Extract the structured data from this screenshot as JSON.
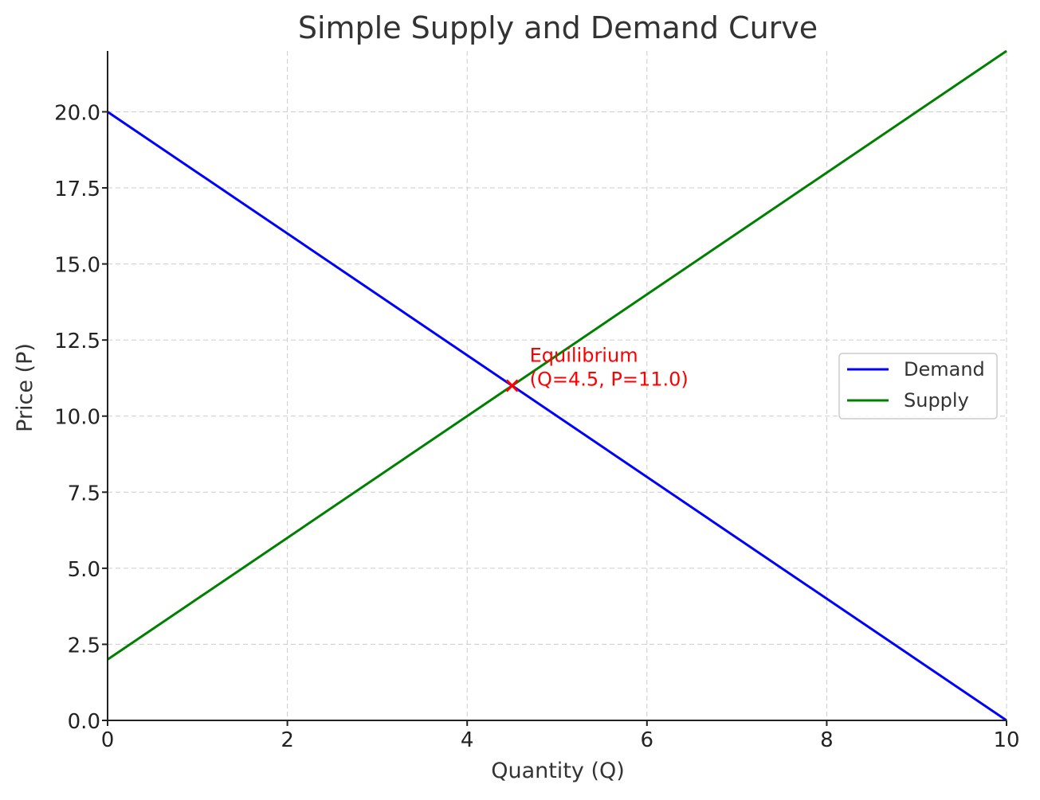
{
  "chart_data": {
    "type": "line",
    "title": "Simple Supply and Demand Curve",
    "xlabel": "Quantity (Q)",
    "ylabel": "Price (P)",
    "xlim": [
      0,
      10
    ],
    "ylim": [
      0,
      22
    ],
    "xticks": [
      0,
      2,
      4,
      6,
      8,
      10
    ],
    "xtick_labels": [
      "0",
      "2",
      "4",
      "6",
      "8",
      "10"
    ],
    "yticks": [
      0,
      2.5,
      5,
      7.5,
      10,
      12.5,
      15,
      17.5,
      20
    ],
    "ytick_labels": [
      "0.0",
      "2.5",
      "5.0",
      "7.5",
      "10.0",
      "12.5",
      "15.0",
      "17.5",
      "20.0"
    ],
    "grid": true,
    "legend_position": "center-right",
    "series": [
      {
        "name": "Demand",
        "color": "#0000ff",
        "x": [
          0,
          10
        ],
        "y": [
          20,
          0
        ]
      },
      {
        "name": "Supply",
        "color": "#008000",
        "x": [
          0,
          10
        ],
        "y": [
          2,
          22
        ]
      }
    ],
    "annotations": [
      {
        "marker": "x",
        "color": "#ff0000",
        "x": 4.5,
        "y": 11.0,
        "lines": [
          "Equilibrium",
          "(Q=4.5, P=11.0)"
        ]
      }
    ]
  }
}
